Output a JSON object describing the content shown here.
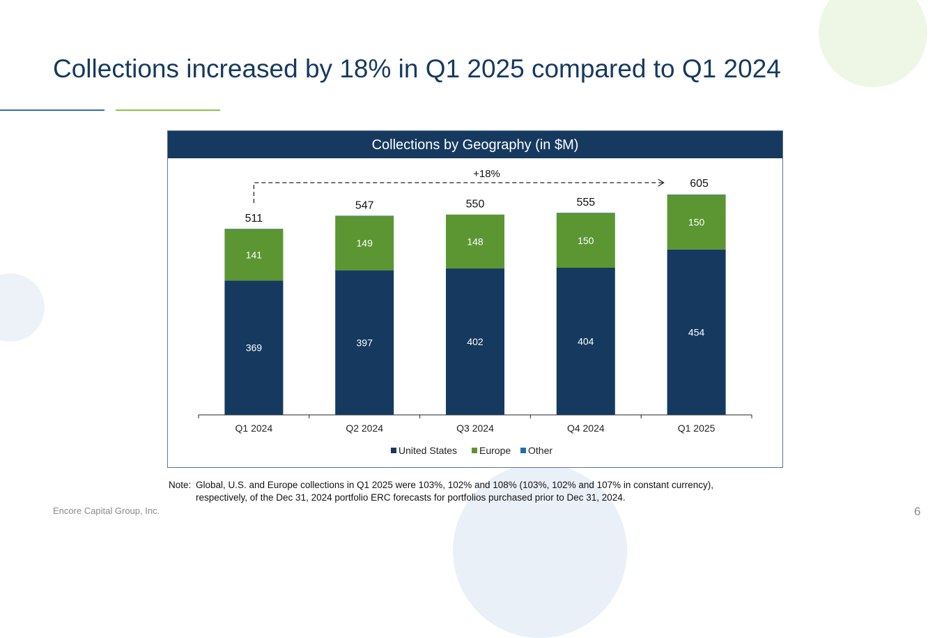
{
  "slide": {
    "title": "Collections increased by 18% in Q1 2025 compared to Q1 2024",
    "footer": "Encore Capital Group, Inc.",
    "page_number": "6",
    "note_label": "Note:",
    "note_text": "Global, U.S. and Europe collections in Q1 2025 were 103%, 102% and 108% (103%, 102% and 107% in constant currency), respectively, of the Dec 31, 2024 portfolio ERC forecasts for portfolios purchased prior to Dec 31, 2024."
  },
  "colors": {
    "united_states": "#163a5f",
    "europe": "#5b9632",
    "other": "#1f6fae",
    "title": "#163a5f"
  },
  "chart_data": {
    "type": "bar",
    "stacked": true,
    "title": "Collections by Geography (in $M)",
    "xlabel": "",
    "ylabel": "",
    "categories": [
      "Q1 2024",
      "Q2 2024",
      "Q3 2024",
      "Q4 2024",
      "Q1 2025"
    ],
    "series": [
      {
        "name": "United States",
        "values": [
          369,
          397,
          402,
          404,
          454
        ]
      },
      {
        "name": "Europe",
        "values": [
          141,
          149,
          148,
          150,
          150
        ]
      },
      {
        "name": "Other",
        "values": [
          1,
          1,
          0,
          1,
          1
        ]
      }
    ],
    "totals": [
      511,
      547,
      550,
      555,
      605
    ],
    "ylim": [
      0,
      605
    ],
    "grid": false,
    "legend": "bottom",
    "annotation": {
      "text": "+18%",
      "from": "Q1 2024",
      "to": "Q1 2025"
    }
  }
}
